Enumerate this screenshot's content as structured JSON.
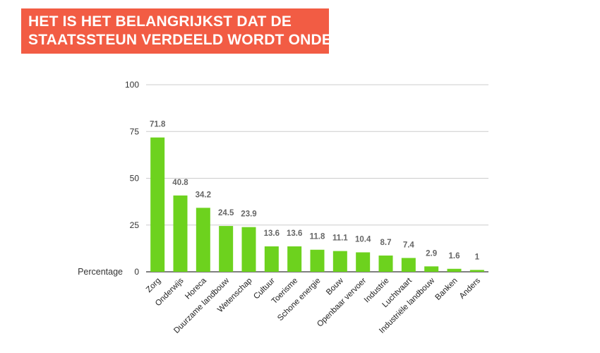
{
  "header": {
    "title_line1": "HET IS HET BELANGRIJKST DAT DE",
    "title_line2": "STAATSSTEUN VERDEELD WORDT ONDER:"
  },
  "colors": {
    "banner": "#f25c44",
    "bar": "#6dd21e",
    "grid": "#cccccc"
  },
  "chart_data": {
    "type": "bar",
    "title": "HET IS HET BELANGRIJKST DAT DE STAATSSTEUN VERDEELD WORDT ONDER:",
    "xlabel": "",
    "ylabel": "Percentage",
    "ylim": [
      0,
      100
    ],
    "yticks": [
      0,
      25,
      50,
      75,
      100
    ],
    "grid": true,
    "categories": [
      "Zorg",
      "Onderwijs",
      "Horeca",
      "Duurzame landbouw",
      "Wetenschap",
      "Cultuur",
      "Toerisme",
      "Schone energie",
      "Bouw",
      "Openbaar vervoer",
      "Industrie",
      "Luchtvaart",
      "Industriële landbouw",
      "Banken",
      "Anders"
    ],
    "values": [
      71.8,
      40.8,
      34.2,
      24.5,
      23.9,
      13.6,
      13.6,
      11.8,
      11.1,
      10.4,
      8.7,
      7.4,
      2.9,
      1.6,
      1
    ]
  }
}
